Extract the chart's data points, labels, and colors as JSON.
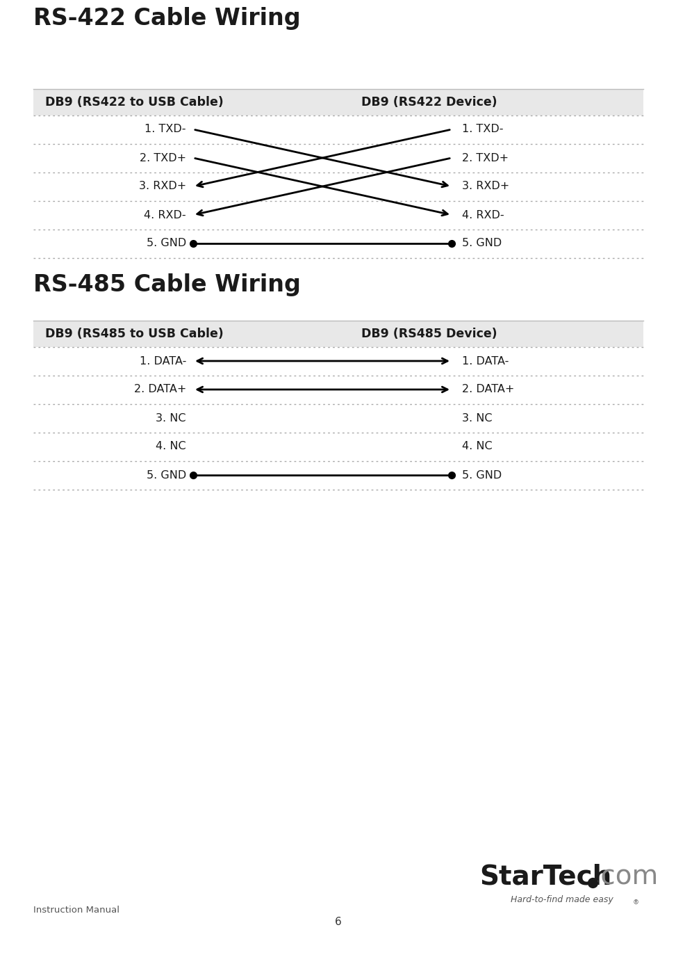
{
  "title_422": "RS-422 Cable Wiring",
  "title_485": "RS-485 Cable Wiring",
  "header_422_left": "DB9 (RS422 to USB Cable)",
  "header_422_right": "DB9 (RS422 Device)",
  "header_485_left": "DB9 (RS485 to USB Cable)",
  "header_485_right": "DB9 (RS485 Device)",
  "rs422_left_labels": [
    "1. TXD-",
    "2. TXD+",
    "3. RXD+",
    "4. RXD-",
    "5. GND"
  ],
  "rs422_right_labels": [
    "1. TXD-",
    "2. TXD+",
    "3. RXD+",
    "4. RXD-",
    "5. GND"
  ],
  "rs485_left_labels": [
    "1. DATA-",
    "2. DATA+",
    "3. NC",
    "4. NC",
    "5. GND"
  ],
  "rs485_right_labels": [
    "1. DATA-",
    "2. DATA+",
    "3. NC",
    "4. NC",
    "5. GND"
  ],
  "bg_color": "#ffffff",
  "header_bg": "#e8e8e8",
  "text_color": "#1a1a1a",
  "dotted_line_color": "#aaaaaa",
  "arrow_color": "#000000",
  "footer_text": "Instruction Manual",
  "page_number": "6",
  "startech_black": "#1a1a1a",
  "startech_gray": "#888888"
}
